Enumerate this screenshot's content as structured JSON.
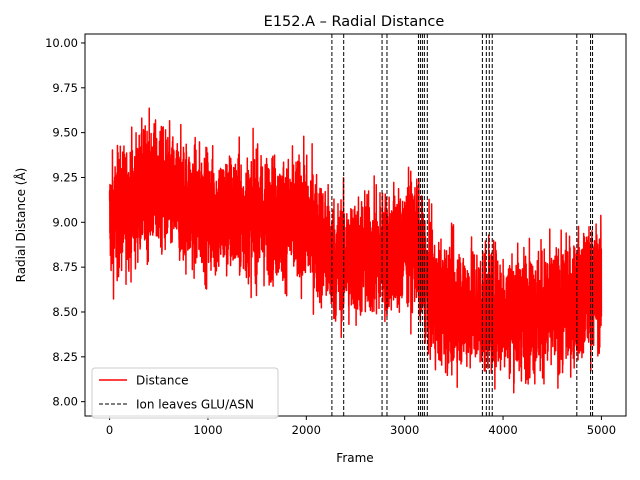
{
  "chart_data": {
    "type": "line",
    "title": "E152.A – Radial Distance",
    "xlabel": "Frame",
    "ylabel": "Radial Distance (Å)",
    "xlim": [
      -250,
      5250
    ],
    "ylim": [
      7.92,
      10.05
    ],
    "xticks": [
      0,
      1000,
      2000,
      3000,
      4000,
      5000
    ],
    "yticks": [
      8.0,
      8.25,
      8.5,
      8.75,
      9.0,
      9.25,
      9.5,
      9.75,
      10.0
    ],
    "grid": false,
    "legend_position": "lower-left",
    "series": [
      {
        "name": "Distance",
        "color": "#ff0000",
        "frames": 5001,
        "trend": [
          {
            "x": 0,
            "y": 9.0
          },
          {
            "x": 400,
            "y": 9.2
          },
          {
            "x": 1000,
            "y": 9.05
          },
          {
            "x": 2000,
            "y": 9.0
          },
          {
            "x": 2300,
            "y": 8.78
          },
          {
            "x": 2800,
            "y": 8.82
          },
          {
            "x": 3100,
            "y": 8.9
          },
          {
            "x": 3300,
            "y": 8.55
          },
          {
            "x": 4000,
            "y": 8.5
          },
          {
            "x": 4500,
            "y": 8.5
          },
          {
            "x": 5000,
            "y": 8.65
          }
        ],
        "y_range": [
          8.05,
          9.86
        ]
      }
    ],
    "events": {
      "name": "Ion leaves GLU/ASN",
      "color": "#000000",
      "x": [
        2260,
        2380,
        2770,
        2820,
        3140,
        3160,
        3180,
        3200,
        3230,
        3790,
        3830,
        3860,
        3890,
        4750,
        4890,
        4910
      ]
    }
  }
}
